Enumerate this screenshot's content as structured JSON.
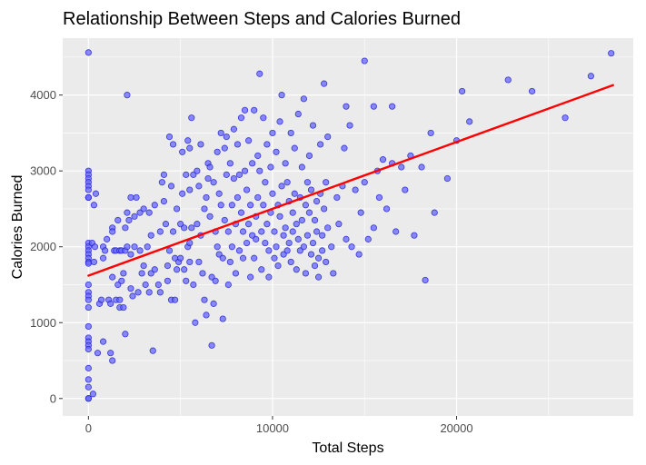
{
  "chart_data": {
    "type": "scatter",
    "title": "Relationship Between Steps and Calories Burned",
    "xlabel": "Total Steps",
    "ylabel": "Calories Burned",
    "xlim": [
      -1400,
      29600
    ],
    "ylim": [
      -230,
      4750
    ],
    "x_ticks": [
      0,
      10000,
      20000
    ],
    "x_tick_labels": [
      "0",
      "10000",
      "20000"
    ],
    "y_ticks": [
      0,
      1000,
      2000,
      3000,
      4000
    ],
    "y_tick_labels": [
      "0",
      "1000",
      "2000",
      "3000",
      "4000"
    ],
    "grid": true,
    "legend": "none",
    "colors": {
      "panel": "#ebebeb",
      "grid": "#ffffff",
      "points_fill": "#6666ff",
      "points_stroke": "#1a1acc",
      "trend": "#ff0000"
    },
    "trend_line": {
      "x": [
        0,
        28500
      ],
      "y": [
        1620,
        4130
      ]
    },
    "series": [
      {
        "values": [
          [
            0,
            4560
          ],
          [
            0,
            2650
          ],
          [
            0,
            3000
          ],
          [
            0,
            2950
          ],
          [
            0,
            2900
          ],
          [
            0,
            2850
          ],
          [
            0,
            2800
          ],
          [
            0,
            2750
          ],
          [
            0,
            2650
          ],
          [
            0,
            2050
          ],
          [
            0,
            2000
          ],
          [
            0,
            1950
          ],
          [
            0,
            1900
          ],
          [
            0,
            1850
          ],
          [
            0,
            1800
          ],
          [
            0,
            1780
          ],
          [
            0,
            1500
          ],
          [
            0,
            1400
          ],
          [
            0,
            1350
          ],
          [
            0,
            1300
          ],
          [
            0,
            1200
          ],
          [
            0,
            950
          ],
          [
            0,
            800
          ],
          [
            0,
            750
          ],
          [
            0,
            700
          ],
          [
            0,
            650
          ],
          [
            0,
            400
          ],
          [
            0,
            250
          ],
          [
            0,
            150
          ],
          [
            0,
            0
          ],
          [
            0,
            0
          ],
          [
            200,
            2050
          ],
          [
            250,
            60
          ],
          [
            300,
            2550
          ],
          [
            300,
            1800
          ],
          [
            350,
            2000
          ],
          [
            400,
            2700
          ],
          [
            500,
            600
          ],
          [
            600,
            1250
          ],
          [
            700,
            1300
          ],
          [
            800,
            2000
          ],
          [
            800,
            1850
          ],
          [
            800,
            750
          ],
          [
            900,
            1950
          ],
          [
            1000,
            2100
          ],
          [
            1100,
            1300
          ],
          [
            1200,
            1250
          ],
          [
            1200,
            600
          ],
          [
            1300,
            2250
          ],
          [
            1300,
            2200
          ],
          [
            1300,
            1600
          ],
          [
            1300,
            500
          ],
          [
            1400,
            1950
          ],
          [
            1500,
            1950
          ],
          [
            1500,
            1300
          ],
          [
            1600,
            2350
          ],
          [
            1600,
            1500
          ],
          [
            1700,
            1950
          ],
          [
            1700,
            1300
          ],
          [
            1700,
            1200
          ],
          [
            1800,
            1950
          ],
          [
            1800,
            1550
          ],
          [
            1900,
            1650
          ],
          [
            1900,
            1200
          ],
          [
            2000,
            2250
          ],
          [
            2000,
            1950
          ],
          [
            2000,
            850
          ],
          [
            2100,
            4000
          ],
          [
            2100,
            2450
          ],
          [
            2100,
            2000
          ],
          [
            2200,
            2350
          ],
          [
            2300,
            2650
          ],
          [
            2300,
            1900
          ],
          [
            2300,
            1450
          ],
          [
            2400,
            1350
          ],
          [
            2500,
            2400
          ],
          [
            2500,
            2000
          ],
          [
            2600,
            2650
          ],
          [
            2700,
            1400
          ],
          [
            2800,
            2450
          ],
          [
            2800,
            1950
          ],
          [
            2900,
            1650
          ],
          [
            3000,
            2500
          ],
          [
            3000,
            1750
          ],
          [
            3100,
            1500
          ],
          [
            3200,
            2000
          ],
          [
            3300,
            2450
          ],
          [
            3300,
            1400
          ],
          [
            3400,
            2150
          ],
          [
            3400,
            1650
          ],
          [
            3500,
            630
          ],
          [
            3600,
            2550
          ],
          [
            3600,
            1700
          ],
          [
            3800,
            1500
          ],
          [
            3900,
            2200
          ],
          [
            3900,
            1400
          ],
          [
            4000,
            2850
          ],
          [
            4100,
            2950
          ],
          [
            4100,
            2600
          ],
          [
            4200,
            2300
          ],
          [
            4300,
            1750
          ],
          [
            4300,
            1550
          ],
          [
            4400,
            3450
          ],
          [
            4400,
            1950
          ],
          [
            4500,
            2800
          ],
          [
            4500,
            1300
          ],
          [
            4600,
            3350
          ],
          [
            4600,
            2200
          ],
          [
            4700,
            1850
          ],
          [
            4700,
            1300
          ],
          [
            4800,
            2500
          ],
          [
            4800,
            1700
          ],
          [
            4900,
            1800
          ],
          [
            5000,
            2300
          ],
          [
            5000,
            1850
          ],
          [
            5100,
            3250
          ],
          [
            5100,
            2700
          ],
          [
            5200,
            2250
          ],
          [
            5200,
            1700
          ],
          [
            5300,
            2950
          ],
          [
            5300,
            1550
          ],
          [
            5400,
            3400
          ],
          [
            5400,
            2000
          ],
          [
            5500,
            3300
          ],
          [
            5500,
            2750
          ],
          [
            5500,
            2050
          ],
          [
            5500,
            1800
          ],
          [
            5600,
            3700
          ],
          [
            5600,
            2250
          ],
          [
            5700,
            2950
          ],
          [
            5700,
            1500
          ],
          [
            5800,
            1000
          ],
          [
            5900,
            3000
          ],
          [
            5900,
            2300
          ],
          [
            6000,
            2800
          ],
          [
            6000,
            1800
          ],
          [
            6100,
            3350
          ],
          [
            6100,
            2150
          ],
          [
            6200,
            1650
          ],
          [
            6300,
            2500
          ],
          [
            6300,
            1300
          ],
          [
            6400,
            2650
          ],
          [
            6400,
            1100
          ],
          [
            6500,
            3100
          ],
          [
            6500,
            2900
          ],
          [
            6600,
            3050
          ],
          [
            6600,
            2400
          ],
          [
            6700,
            1600
          ],
          [
            6700,
            700
          ],
          [
            6800,
            2850
          ],
          [
            6800,
            1250
          ],
          [
            6900,
            2200
          ],
          [
            6900,
            1550
          ],
          [
            7000,
            3250
          ],
          [
            7000,
            2000
          ],
          [
            7100,
            2700
          ],
          [
            7100,
            1900
          ],
          [
            7200,
            3500
          ],
          [
            7200,
            2550
          ],
          [
            7300,
            1850
          ],
          [
            7300,
            1050
          ],
          [
            7400,
            3300
          ],
          [
            7400,
            2350
          ],
          [
            7500,
            3450
          ],
          [
            7500,
            2950
          ],
          [
            7600,
            2200
          ],
          [
            7600,
            1500
          ],
          [
            7700,
            3100
          ],
          [
            7700,
            1800
          ],
          [
            7800,
            2550
          ],
          [
            7800,
            2000
          ],
          [
            7900,
            3550
          ],
          [
            7900,
            2900
          ],
          [
            8000,
            2300
          ],
          [
            8000,
            1650
          ],
          [
            8100,
            3350
          ],
          [
            8100,
            2650
          ],
          [
            8200,
            2950
          ],
          [
            8200,
            1950
          ],
          [
            8300,
            3700
          ],
          [
            8300,
            2450
          ],
          [
            8400,
            2200
          ],
          [
            8400,
            1850
          ],
          [
            8500,
            3800
          ],
          [
            8500,
            3000
          ],
          [
            8600,
            2750
          ],
          [
            8600,
            2050
          ],
          [
            8700,
            3400
          ],
          [
            8700,
            2300
          ],
          [
            8800,
            1600
          ],
          [
            8800,
            2550
          ],
          [
            8900,
            3100
          ],
          [
            8900,
            2150
          ],
          [
            9000,
            3800
          ],
          [
            9000,
            1850
          ],
          [
            9100,
            2400
          ],
          [
            9100,
            2100
          ],
          [
            9200,
            3200
          ],
          [
            9200,
            2650
          ],
          [
            9300,
            4280
          ],
          [
            9300,
            3000
          ],
          [
            9400,
            2200
          ],
          [
            9400,
            1700
          ],
          [
            9500,
            3700
          ],
          [
            9500,
            2550
          ],
          [
            9600,
            2850
          ],
          [
            9600,
            2050
          ],
          [
            9700,
            3350
          ],
          [
            9700,
            2300
          ],
          [
            9800,
            1950
          ],
          [
            9800,
            1600
          ],
          [
            9900,
            3050
          ],
          [
            9900,
            2450
          ],
          [
            10000,
            3500
          ],
          [
            10000,
            2700
          ],
          [
            10100,
            2200
          ],
          [
            10100,
            1850
          ],
          [
            10200,
            3250
          ],
          [
            10200,
            2000
          ],
          [
            10300,
            2550
          ],
          [
            10300,
            1750
          ],
          [
            10400,
            3650
          ],
          [
            10400,
            2400
          ],
          [
            10500,
            4000
          ],
          [
            10500,
            2800
          ],
          [
            10600,
            2150
          ],
          [
            10600,
            1900
          ],
          [
            10700,
            3100
          ],
          [
            10700,
            2250
          ],
          [
            10800,
            2850
          ],
          [
            10800,
            1950
          ],
          [
            10900,
            2600
          ],
          [
            10900,
            2050
          ],
          [
            11000,
            3500
          ],
          [
            11000,
            1800
          ],
          [
            11100,
            2450
          ],
          [
            11100,
            2200
          ],
          [
            11200,
            3300
          ],
          [
            11200,
            2700
          ],
          [
            11300,
            2300
          ],
          [
            11300,
            1700
          ],
          [
            11400,
            3750
          ],
          [
            11400,
            2100
          ],
          [
            11500,
            2650
          ],
          [
            11500,
            1950
          ],
          [
            11600,
            3050
          ],
          [
            11600,
            2350
          ],
          [
            11700,
            3950
          ],
          [
            11700,
            2000
          ],
          [
            11800,
            2550
          ],
          [
            11800,
            1650
          ],
          [
            11900,
            2850
          ],
          [
            11900,
            2150
          ],
          [
            12000,
            3200
          ],
          [
            12000,
            2450
          ],
          [
            12100,
            2750
          ],
          [
            12100,
            1900
          ],
          [
            12200,
            3600
          ],
          [
            12200,
            2050
          ],
          [
            12300,
            2350
          ],
          [
            12300,
            1750
          ],
          [
            12400,
            2600
          ],
          [
            12400,
            2200
          ],
          [
            12500,
            1850
          ],
          [
            12500,
            1600
          ],
          [
            12600,
            3350
          ],
          [
            12600,
            2700
          ],
          [
            12700,
            2150
          ],
          [
            12700,
            1950
          ],
          [
            12800,
            4150
          ],
          [
            12800,
            2500
          ],
          [
            12900,
            2850
          ],
          [
            12900,
            1800
          ],
          [
            13000,
            3450
          ],
          [
            13000,
            2250
          ],
          [
            13200,
            2000
          ],
          [
            13300,
            1650
          ],
          [
            13500,
            2650
          ],
          [
            13600,
            2300
          ],
          [
            13800,
            2800
          ],
          [
            13900,
            3300
          ],
          [
            14000,
            3850
          ],
          [
            14000,
            2100
          ],
          [
            14200,
            3600
          ],
          [
            14300,
            2000
          ],
          [
            14500,
            2750
          ],
          [
            14700,
            1900
          ],
          [
            14800,
            2450
          ],
          [
            15000,
            4450
          ],
          [
            15000,
            2850
          ],
          [
            15200,
            2100
          ],
          [
            15500,
            3850
          ],
          [
            15500,
            2250
          ],
          [
            15700,
            3000
          ],
          [
            15800,
            2650
          ],
          [
            16000,
            3150
          ],
          [
            16200,
            2500
          ],
          [
            16500,
            3850
          ],
          [
            16500,
            3100
          ],
          [
            16700,
            2200
          ],
          [
            17000,
            3050
          ],
          [
            17200,
            2750
          ],
          [
            17500,
            3200
          ],
          [
            17700,
            2150
          ],
          [
            18100,
            3050
          ],
          [
            18300,
            1560
          ],
          [
            18600,
            3500
          ],
          [
            18800,
            2450
          ],
          [
            19500,
            2900
          ],
          [
            20000,
            3400
          ],
          [
            20300,
            4050
          ],
          [
            20700,
            3650
          ],
          [
            22800,
            4200
          ],
          [
            24100,
            4050
          ],
          [
            25900,
            3700
          ],
          [
            27300,
            4250
          ],
          [
            28400,
            4550
          ]
        ]
      }
    ]
  }
}
